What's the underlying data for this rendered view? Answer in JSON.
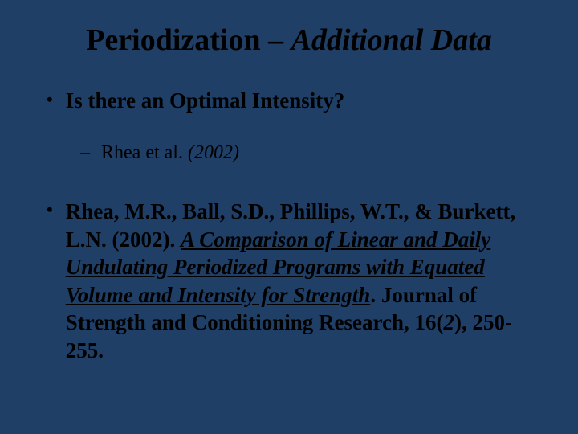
{
  "background_color": "#1f3f66",
  "text_color": "#000000",
  "font_family": "Georgia, 'Times New Roman', serif",
  "title": {
    "prefix": "Periodization – ",
    "italic_part": "Additional Data",
    "fontsize": 38,
    "weight": "bold",
    "align": "center"
  },
  "bullets": {
    "l1_marker": "•",
    "l2_marker": "–",
    "question": "Is there an Optimal Intensity?",
    "sub_author": "Rhea et al. ",
    "sub_year": "(2002)"
  },
  "reference": {
    "authors": "Rhea, M.R., Ball, S.D., Phillips, W.T., & Burkett, L.N. (2002). ",
    "title_underlined_italic": "A Comparison of Linear and Daily Undulating Periodized Programs with Equated Volume and Intensity for Strength",
    "period": ". ",
    "journal": "Journal of Strength and Conditioning Research, 16(",
    "issue_italic": "2",
    "pages": "), 250-255."
  },
  "styling": {
    "l1_fontsize": 27,
    "l2_fontsize": 24,
    "ref_fontsize": 27,
    "line_height": 1.28
  }
}
